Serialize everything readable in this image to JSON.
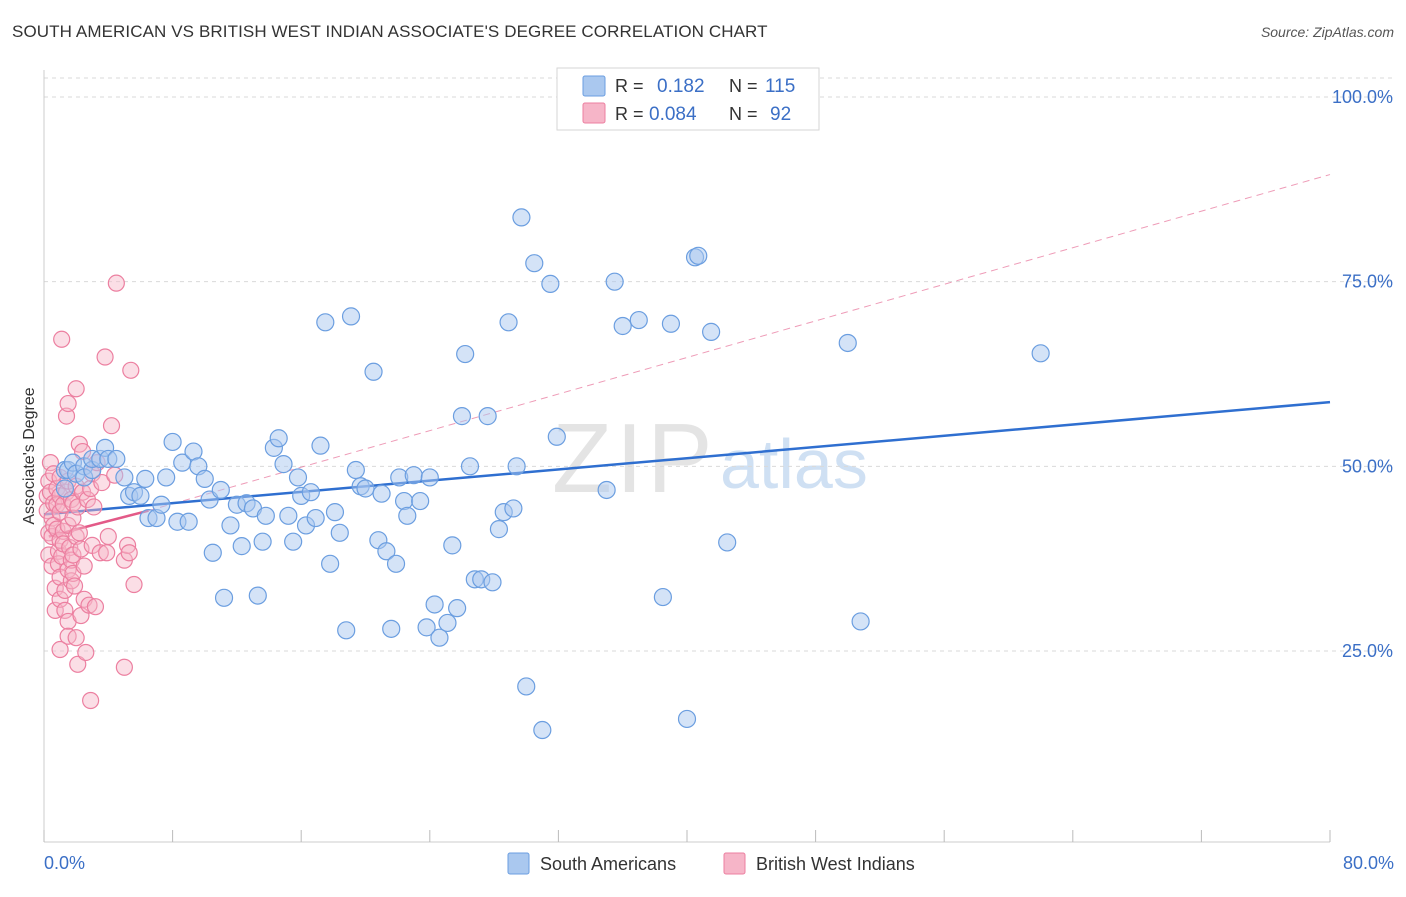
{
  "header": {
    "title": "SOUTH AMERICAN VS BRITISH WEST INDIAN ASSOCIATE'S DEGREE CORRELATION CHART",
    "source": "Source: ZipAtlas.com"
  },
  "watermark": {
    "zip": "ZIP",
    "atlas": "atlas"
  },
  "legend_top": [
    {
      "r_label": "R =",
      "r_value": "0.182",
      "n_label": "N =",
      "n_value": "115"
    },
    {
      "r_label": "R =",
      "r_value": "0.084",
      "n_label": "N =",
      "n_value": "92"
    }
  ],
  "colors": {
    "blue_fill": "#aac8ef",
    "blue_stroke": "#6b9ee0",
    "blue_line": "#2f6fd0",
    "pink_fill": "#f6b5c8",
    "pink_stroke": "#ec7fa0",
    "pink_line": "#e35a88",
    "axis_text": "#3b6fc6",
    "grid": "#d9d9d9"
  },
  "chart_data": {
    "type": "scatter",
    "title": "SOUTH AMERICAN VS BRITISH WEST INDIAN ASSOCIATE'S DEGREE CORRELATION CHART",
    "xlabel": "",
    "ylabel": "Associate's Degree",
    "xlim": [
      0,
      80
    ],
    "ylim": [
      0,
      105
    ],
    "x_tick_labels": [
      "0.0%",
      "80.0%"
    ],
    "y_ticks": [
      25,
      50,
      75,
      100
    ],
    "y_tick_labels": [
      "25.0%",
      "50.0%",
      "75.0%",
      "100.0%"
    ],
    "grid": true,
    "legend_position": "bottom-center",
    "series": [
      {
        "name": "South Americans",
        "color": "blue",
        "r": 0.182,
        "n": 115,
        "trend": {
          "x": [
            0,
            80
          ],
          "y": [
            43.5,
            58.7
          ],
          "style": "solid"
        },
        "points": [
          [
            1.3,
            47
          ],
          [
            1.3,
            49.5
          ],
          [
            1.5,
            49.5
          ],
          [
            1.8,
            50.5
          ],
          [
            2.0,
            49
          ],
          [
            2.5,
            50
          ],
          [
            2.5,
            48.5
          ],
          [
            3.0,
            49.5
          ],
          [
            3.0,
            51
          ],
          [
            3.5,
            51
          ],
          [
            3.8,
            52.5
          ],
          [
            4.0,
            51
          ],
          [
            4.5,
            51
          ],
          [
            5.0,
            48.5
          ],
          [
            5.3,
            46
          ],
          [
            5.6,
            46.5
          ],
          [
            6.0,
            46
          ],
          [
            6.3,
            48.3
          ],
          [
            6.5,
            43
          ],
          [
            7.0,
            43
          ],
          [
            7.3,
            44.8
          ],
          [
            7.6,
            48.5
          ],
          [
            8.0,
            53.3
          ],
          [
            8.3,
            42.5
          ],
          [
            8.6,
            50.5
          ],
          [
            9.0,
            42.5
          ],
          [
            9.3,
            52
          ],
          [
            9.6,
            50
          ],
          [
            10.0,
            48.3
          ],
          [
            10.3,
            45.5
          ],
          [
            10.5,
            38.3
          ],
          [
            11.0,
            46.8
          ],
          [
            11.2,
            32.2
          ],
          [
            11.6,
            42
          ],
          [
            12.0,
            44.8
          ],
          [
            12.3,
            39.2
          ],
          [
            12.6,
            45
          ],
          [
            13.0,
            44.3
          ],
          [
            13.3,
            32.5
          ],
          [
            13.6,
            39.8
          ],
          [
            13.8,
            43.3
          ],
          [
            14.3,
            52.5
          ],
          [
            14.6,
            53.8
          ],
          [
            14.9,
            50.3
          ],
          [
            15.2,
            43.3
          ],
          [
            15.5,
            39.8
          ],
          [
            15.8,
            48.5
          ],
          [
            16.0,
            46
          ],
          [
            16.3,
            42
          ],
          [
            16.6,
            46.5
          ],
          [
            16.9,
            43
          ],
          [
            17.2,
            52.8
          ],
          [
            17.5,
            69.5
          ],
          [
            17.8,
            36.8
          ],
          [
            18.1,
            43.8
          ],
          [
            18.4,
            41
          ],
          [
            18.8,
            27.8
          ],
          [
            19.1,
            70.3
          ],
          [
            19.4,
            49.5
          ],
          [
            19.7,
            47.3
          ],
          [
            20.0,
            47
          ],
          [
            20.5,
            62.8
          ],
          [
            20.8,
            40
          ],
          [
            21.0,
            46.3
          ],
          [
            21.3,
            38.5
          ],
          [
            21.6,
            28
          ],
          [
            21.9,
            36.8
          ],
          [
            22.1,
            48.5
          ],
          [
            22.4,
            45.3
          ],
          [
            22.6,
            43.3
          ],
          [
            23.0,
            48.8
          ],
          [
            23.4,
            45.3
          ],
          [
            23.8,
            28.2
          ],
          [
            24.0,
            48.5
          ],
          [
            24.3,
            31.3
          ],
          [
            24.6,
            26.8
          ],
          [
            25.1,
            28.8
          ],
          [
            25.4,
            39.3
          ],
          [
            25.7,
            30.8
          ],
          [
            26.0,
            56.8
          ],
          [
            26.2,
            65.2
          ],
          [
            26.5,
            50
          ],
          [
            26.8,
            34.7
          ],
          [
            27.2,
            34.7
          ],
          [
            27.6,
            56.8
          ],
          [
            27.9,
            34.3
          ],
          [
            28.3,
            41.5
          ],
          [
            28.6,
            43.8
          ],
          [
            28.9,
            69.5
          ],
          [
            29.2,
            44.3
          ],
          [
            29.4,
            50
          ],
          [
            29.7,
            83.7
          ],
          [
            30.0,
            20.2
          ],
          [
            30.5,
            77.5
          ],
          [
            31.0,
            14.3
          ],
          [
            31.5,
            74.7
          ],
          [
            31.9,
            54
          ],
          [
            35.0,
            46.8
          ],
          [
            35.5,
            75
          ],
          [
            36.0,
            69
          ],
          [
            37.0,
            69.8
          ],
          [
            38.5,
            32.3
          ],
          [
            39.0,
            69.3
          ],
          [
            40.0,
            15.8
          ],
          [
            40.5,
            78.3
          ],
          [
            40.7,
            78.5
          ],
          [
            41.5,
            68.2
          ],
          [
            42.5,
            39.7
          ],
          [
            50.0,
            66.7
          ],
          [
            50.8,
            29
          ],
          [
            62.0,
            65.3
          ]
        ]
      },
      {
        "name": "British West Indians",
        "color": "pink",
        "r": 0.084,
        "n": 92,
        "trend": {
          "x": [
            0.3,
            6.5
          ],
          "y": [
            40.5,
            44
          ],
          "style": "solid",
          "extended": {
            "x": [
              6.5,
              80
            ],
            "y": [
              44,
              89.5
            ],
            "style": "dashed"
          }
        },
        "points": [
          [
            0.2,
            44
          ],
          [
            0.2,
            46
          ],
          [
            0.3,
            48
          ],
          [
            0.3,
            41
          ],
          [
            0.3,
            38
          ],
          [
            0.4,
            50.5
          ],
          [
            0.4,
            46.5
          ],
          [
            0.5,
            43
          ],
          [
            0.5,
            40.5
          ],
          [
            0.5,
            36.5
          ],
          [
            0.6,
            49
          ],
          [
            0.6,
            45
          ],
          [
            0.6,
            42
          ],
          [
            0.7,
            33.5
          ],
          [
            0.7,
            30.5
          ],
          [
            0.8,
            47
          ],
          [
            0.8,
            44.8
          ],
          [
            0.8,
            41.5
          ],
          [
            0.9,
            38.5
          ],
          [
            0.9,
            36.8
          ],
          [
            1.0,
            48.5
          ],
          [
            1.0,
            46
          ],
          [
            1.0,
            43.8
          ],
          [
            1.0,
            40
          ],
          [
            1.0,
            35
          ],
          [
            1.0,
            32
          ],
          [
            1.0,
            25.2
          ],
          [
            1.1,
            67.2
          ],
          [
            1.1,
            37.8
          ],
          [
            1.2,
            44.8
          ],
          [
            1.2,
            41.2
          ],
          [
            1.2,
            39.5
          ],
          [
            1.3,
            33.2
          ],
          [
            1.3,
            30.5
          ],
          [
            1.4,
            56.8
          ],
          [
            1.4,
            46.5
          ],
          [
            1.5,
            58.5
          ],
          [
            1.5,
            48
          ],
          [
            1.5,
            42
          ],
          [
            1.5,
            36
          ],
          [
            1.5,
            29
          ],
          [
            1.5,
            27
          ],
          [
            1.6,
            39
          ],
          [
            1.7,
            45.5
          ],
          [
            1.7,
            37.3
          ],
          [
            1.7,
            34.5
          ],
          [
            1.8,
            45
          ],
          [
            1.8,
            43
          ],
          [
            1.8,
            38
          ],
          [
            1.8,
            35.5
          ],
          [
            1.9,
            33.8
          ],
          [
            2.0,
            60.5
          ],
          [
            2.0,
            47.3
          ],
          [
            2.0,
            40.5
          ],
          [
            2.0,
            26.8
          ],
          [
            2.1,
            23.2
          ],
          [
            2.1,
            44.5
          ],
          [
            2.2,
            53
          ],
          [
            2.2,
            41
          ],
          [
            2.3,
            38.8
          ],
          [
            2.3,
            29.8
          ],
          [
            2.4,
            52
          ],
          [
            2.4,
            46.5
          ],
          [
            2.5,
            36.5
          ],
          [
            2.5,
            32
          ],
          [
            2.6,
            24.8
          ],
          [
            2.7,
            45.5
          ],
          [
            2.8,
            31.2
          ],
          [
            2.9,
            47
          ],
          [
            2.9,
            18.3
          ],
          [
            3.0,
            49
          ],
          [
            3.0,
            39.3
          ],
          [
            3.1,
            44.5
          ],
          [
            3.2,
            31
          ],
          [
            3.3,
            50.5
          ],
          [
            3.5,
            38.3
          ],
          [
            3.6,
            47.8
          ],
          [
            3.8,
            64.8
          ],
          [
            3.9,
            38.3
          ],
          [
            4.0,
            40.5
          ],
          [
            4.2,
            55.5
          ],
          [
            4.4,
            48.8
          ],
          [
            4.5,
            74.8
          ],
          [
            5.0,
            37.3
          ],
          [
            5.0,
            22.8
          ],
          [
            5.2,
            39.3
          ],
          [
            5.3,
            38.3
          ],
          [
            5.4,
            63
          ],
          [
            5.6,
            34
          ]
        ]
      }
    ]
  },
  "legend_bottom": {
    "south_americans": "South Americans",
    "british_west_indians": "British West Indians"
  }
}
